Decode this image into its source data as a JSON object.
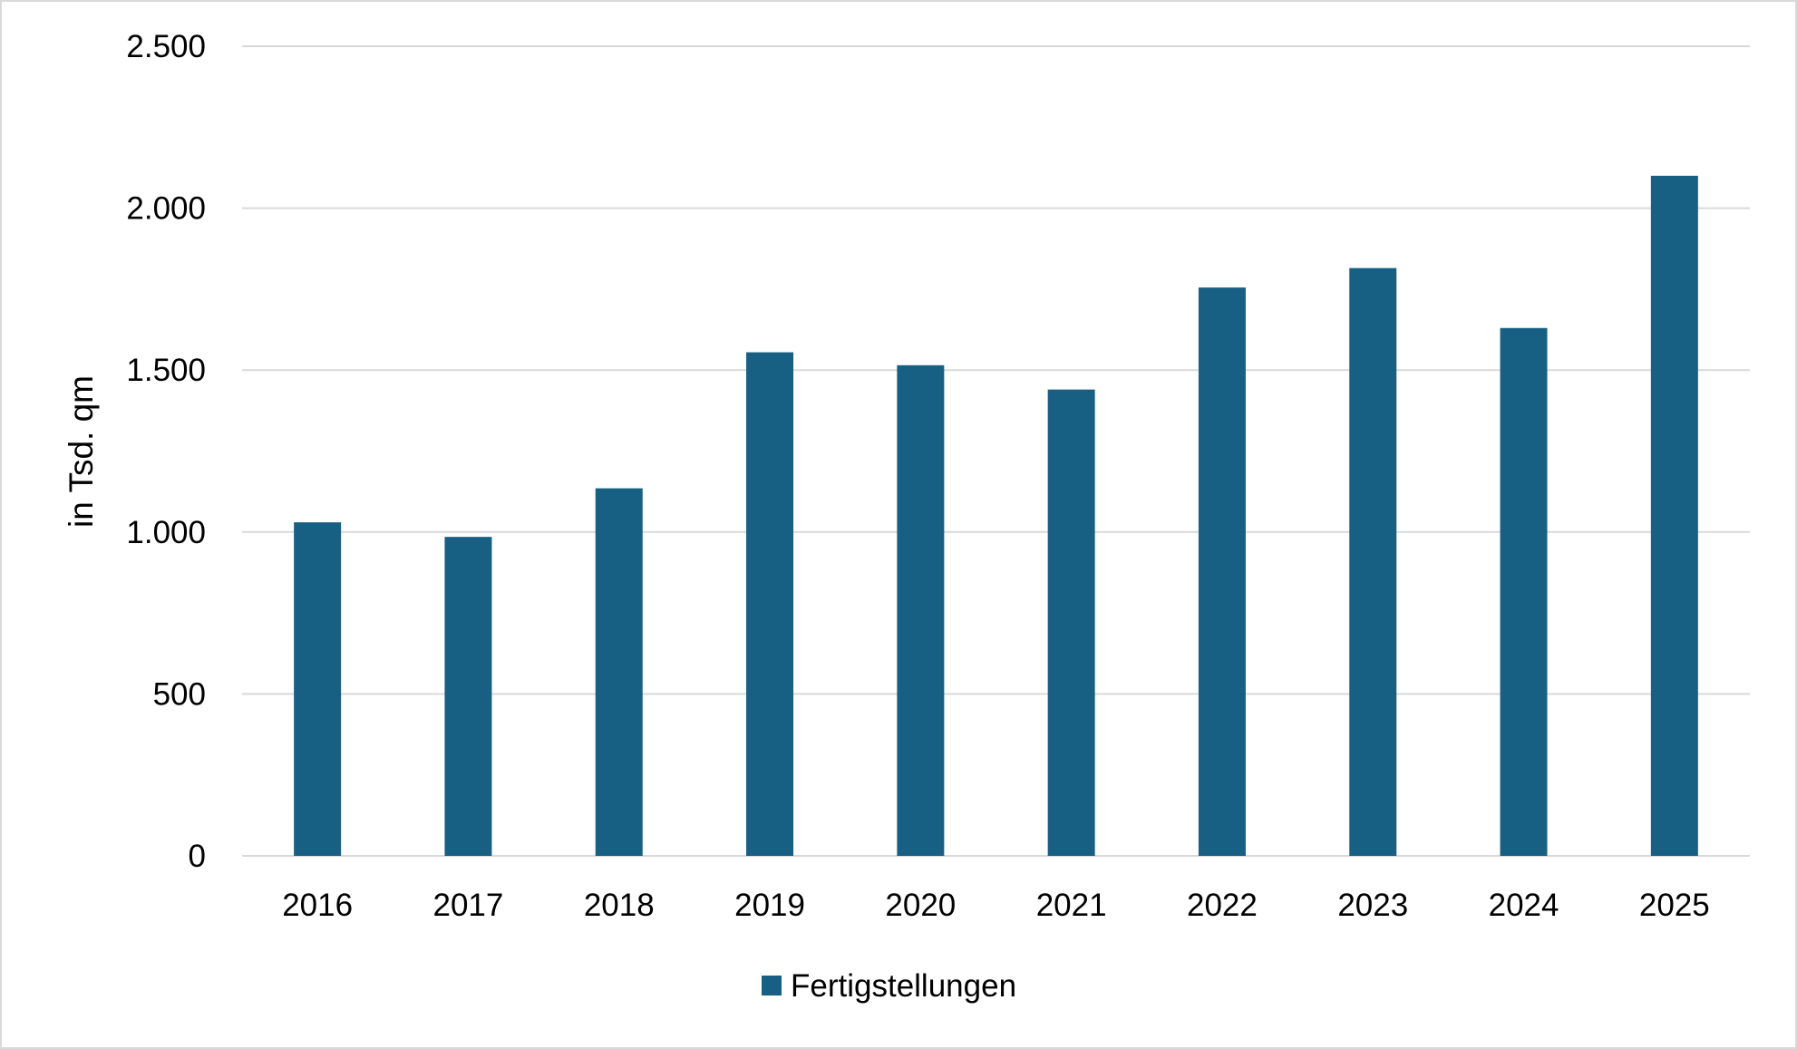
{
  "chart_data": {
    "type": "bar",
    "categories": [
      "2016",
      "2017",
      "2018",
      "2019",
      "2020",
      "2021",
      "2022",
      "2023",
      "2024",
      "2025"
    ],
    "series": [
      {
        "name": "Fertigstellungen",
        "values": [
          1030,
          985,
          1135,
          1555,
          1515,
          1440,
          1755,
          1815,
          1630,
          2100
        ],
        "color": "#176083"
      }
    ],
    "ylabel": "in Tsd. qm",
    "ylim": [
      0,
      2500
    ],
    "yticks": [
      0,
      500,
      1000,
      1500,
      2000,
      2500
    ],
    "ytick_labels": [
      "0",
      "500",
      "1.000",
      "1.500",
      "2.000",
      "2.500"
    ],
    "grid": true,
    "gridline_color": "#d9d9d9",
    "legend_position": "bottom-center"
  }
}
